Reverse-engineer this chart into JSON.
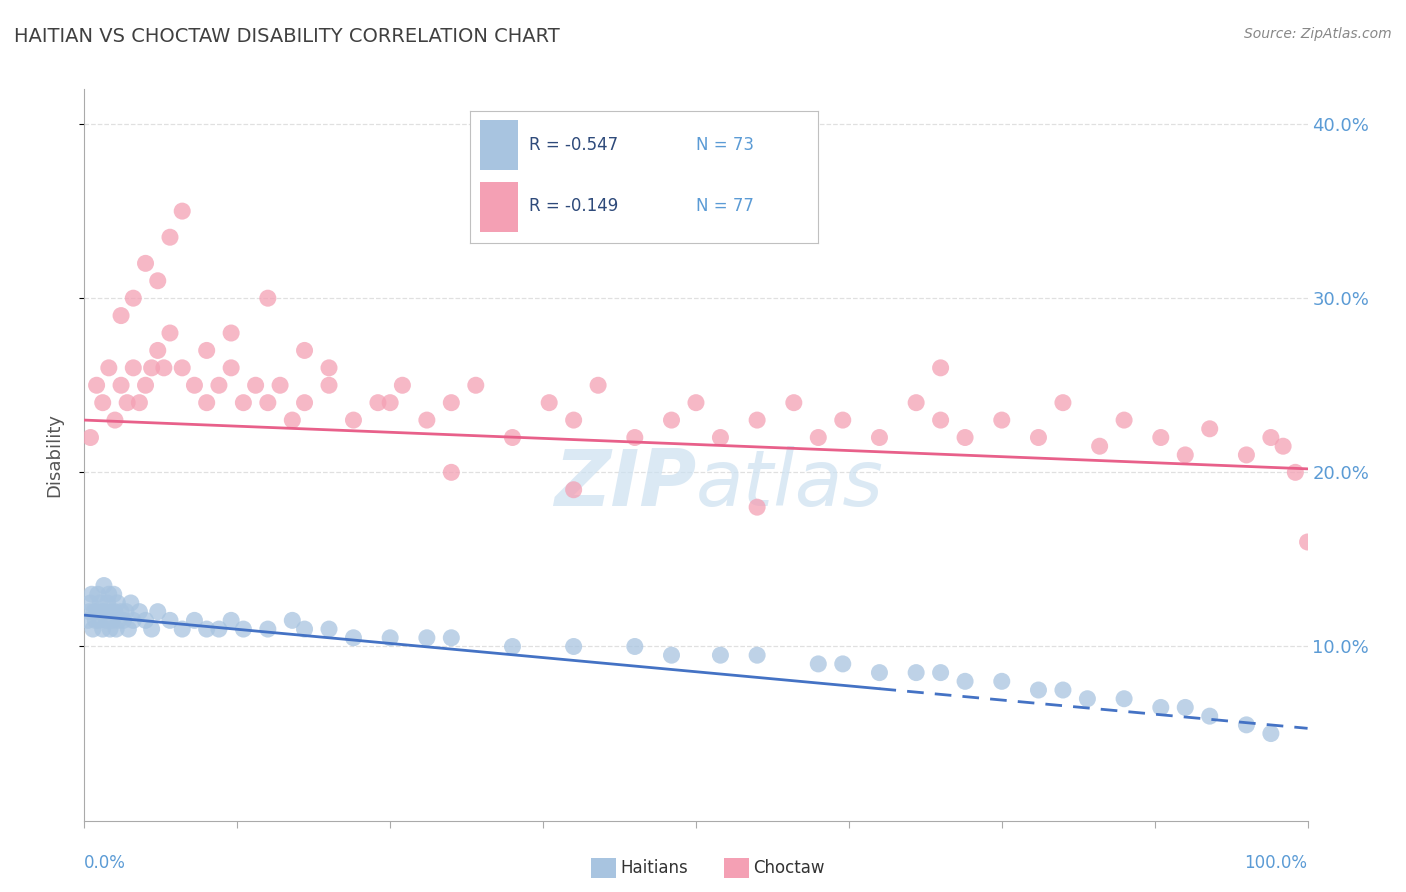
{
  "title": "HAITIAN VS CHOCTAW DISABILITY CORRELATION CHART",
  "source_text": "Source: ZipAtlas.com",
  "ylabel": "Disability",
  "xlim": [
    0,
    100
  ],
  "ylim": [
    0,
    42
  ],
  "yticks": [
    10,
    20,
    30,
    40
  ],
  "ytick_labels": [
    "10.0%",
    "20.0%",
    "30.0%",
    "40.0%"
  ],
  "legend_r1": "-0.547",
  "legend_n1": "73",
  "legend_r2": "-0.149",
  "legend_n2": "77",
  "legend_label1": "Haitians",
  "legend_label2": "Choctaw",
  "haitian_color": "#a8c4e0",
  "choctaw_color": "#f4a0b4",
  "haitian_line_color": "#4472c4",
  "choctaw_line_color": "#e8608a",
  "title_color": "#404040",
  "axis_label_color": "#5b9bd5",
  "source_color": "#888888",
  "watermark_color": "#cce0f0",
  "grid_color": "#e0e0e0",
  "haitian_x": [
    0.3,
    0.4,
    0.5,
    0.6,
    0.7,
    0.8,
    0.9,
    1.0,
    1.1,
    1.2,
    1.3,
    1.4,
    1.5,
    1.6,
    1.7,
    1.8,
    1.9,
    2.0,
    2.1,
    2.2,
    2.3,
    2.4,
    2.5,
    2.6,
    2.7,
    2.8,
    3.0,
    3.2,
    3.4,
    3.6,
    3.8,
    4.0,
    4.5,
    5.0,
    5.5,
    6.0,
    7.0,
    8.0,
    9.0,
    10.0,
    11.0,
    12.0,
    13.0,
    15.0,
    17.0,
    18.0,
    20.0,
    22.0,
    25.0,
    28.0,
    30.0,
    35.0,
    40.0,
    45.0,
    48.0,
    52.0,
    55.0,
    60.0,
    62.0,
    65.0,
    68.0,
    70.0,
    72.0,
    75.0,
    78.0,
    80.0,
    82.0,
    85.0,
    88.0,
    90.0,
    92.0,
    95.0,
    97.0
  ],
  "haitian_y": [
    11.5,
    12.0,
    12.5,
    13.0,
    11.0,
    12.0,
    11.5,
    12.0,
    13.0,
    11.5,
    12.5,
    12.0,
    11.0,
    13.5,
    12.0,
    11.5,
    12.5,
    13.0,
    11.0,
    12.0,
    11.5,
    13.0,
    12.0,
    11.0,
    12.5,
    11.5,
    12.0,
    11.5,
    12.0,
    11.0,
    12.5,
    11.5,
    12.0,
    11.5,
    11.0,
    12.0,
    11.5,
    11.0,
    11.5,
    11.0,
    11.0,
    11.5,
    11.0,
    11.0,
    11.5,
    11.0,
    11.0,
    10.5,
    10.5,
    10.5,
    10.5,
    10.0,
    10.0,
    10.0,
    9.5,
    9.5,
    9.5,
    9.0,
    9.0,
    8.5,
    8.5,
    8.5,
    8.0,
    8.0,
    7.5,
    7.5,
    7.0,
    7.0,
    6.5,
    6.5,
    6.0,
    5.5,
    5.0
  ],
  "choctaw_x": [
    0.5,
    1.0,
    1.5,
    2.0,
    2.5,
    3.0,
    3.5,
    4.0,
    4.5,
    5.0,
    5.5,
    6.0,
    6.5,
    7.0,
    8.0,
    9.0,
    10.0,
    11.0,
    12.0,
    13.0,
    14.0,
    15.0,
    16.0,
    17.0,
    18.0,
    20.0,
    22.0,
    24.0,
    26.0,
    28.0,
    30.0,
    32.0,
    35.0,
    38.0,
    40.0,
    42.0,
    45.0,
    48.0,
    50.0,
    52.0,
    55.0,
    58.0,
    60.0,
    62.0,
    65.0,
    68.0,
    70.0,
    72.0,
    75.0,
    78.0,
    80.0,
    83.0,
    85.0,
    88.0,
    90.0,
    92.0,
    95.0,
    97.0,
    98.0,
    99.0,
    100.0,
    3.0,
    4.0,
    5.0,
    6.0,
    7.0,
    8.0,
    10.0,
    12.0,
    15.0,
    18.0,
    20.0,
    25.0,
    30.0,
    40.0,
    55.0,
    70.0
  ],
  "choctaw_y": [
    22.0,
    25.0,
    24.0,
    26.0,
    23.0,
    25.0,
    24.0,
    26.0,
    24.0,
    25.0,
    26.0,
    27.0,
    26.0,
    28.0,
    26.0,
    25.0,
    24.0,
    25.0,
    26.0,
    24.0,
    25.0,
    24.0,
    25.0,
    23.0,
    24.0,
    25.0,
    23.0,
    24.0,
    25.0,
    23.0,
    24.0,
    25.0,
    22.0,
    24.0,
    23.0,
    25.0,
    22.0,
    23.0,
    24.0,
    22.0,
    23.0,
    24.0,
    22.0,
    23.0,
    22.0,
    24.0,
    23.0,
    22.0,
    23.0,
    22.0,
    24.0,
    21.5,
    23.0,
    22.0,
    21.0,
    22.5,
    21.0,
    22.0,
    21.5,
    20.0,
    16.0,
    29.0,
    30.0,
    32.0,
    31.0,
    33.5,
    35.0,
    27.0,
    28.0,
    30.0,
    27.0,
    26.0,
    24.0,
    20.0,
    19.0,
    18.0,
    26.0
  ]
}
